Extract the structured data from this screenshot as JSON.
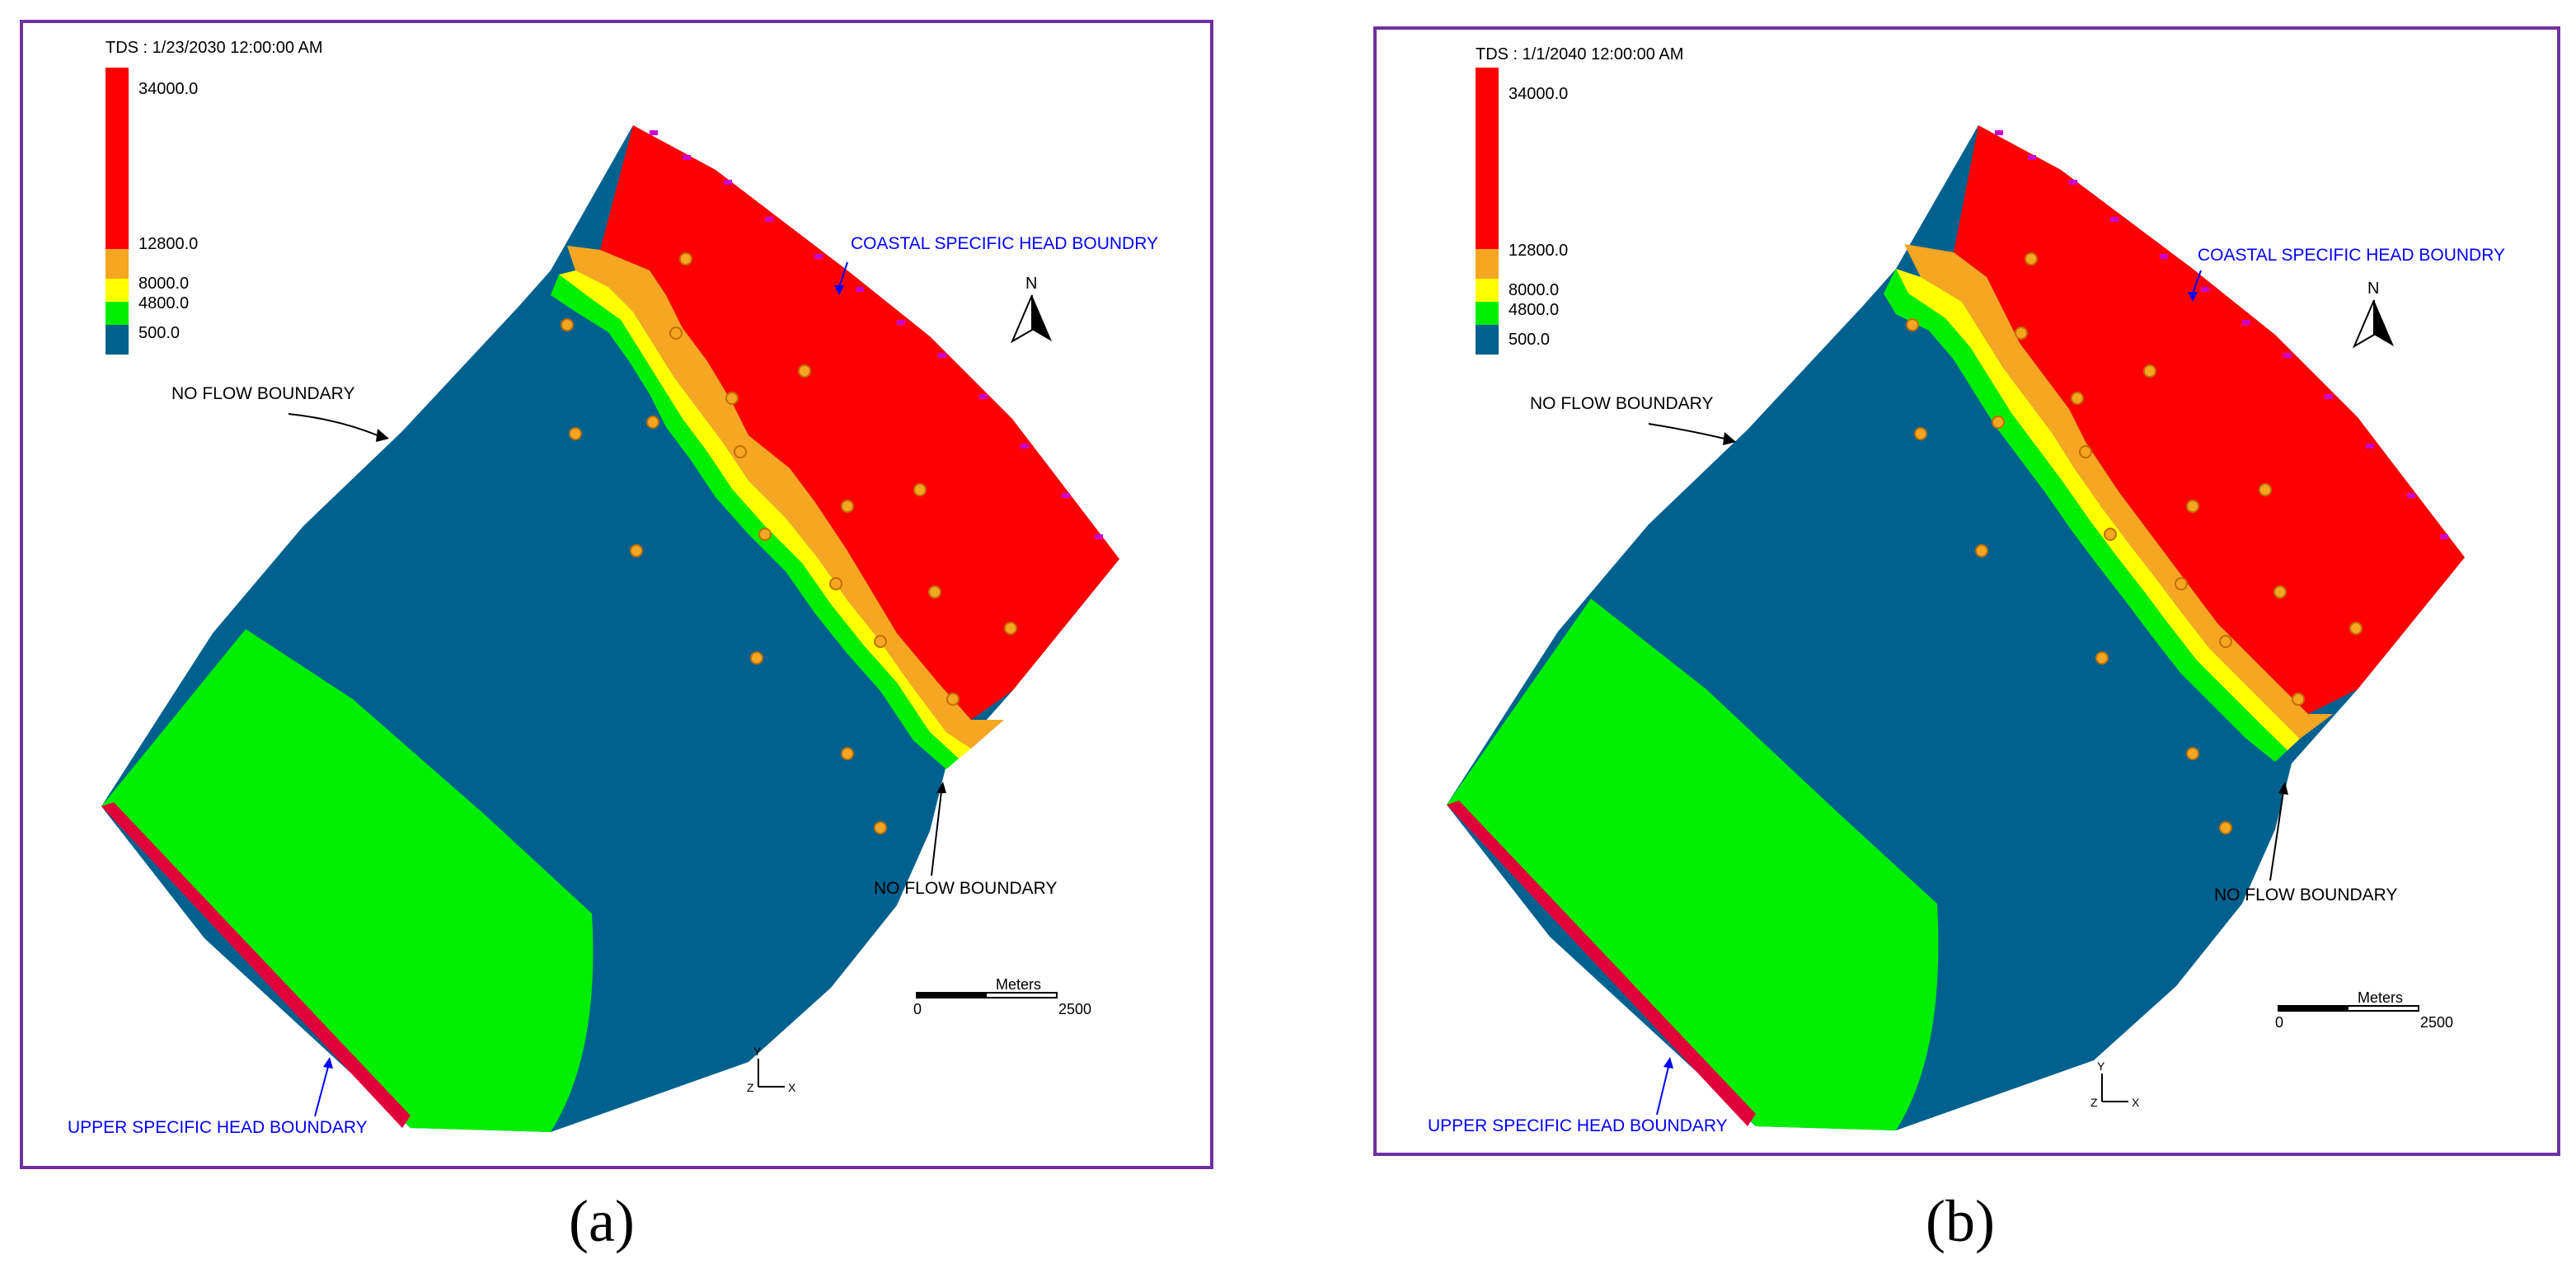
{
  "colors": {
    "frame": "#7030a0",
    "high_salinity": "#ff0000",
    "mid_high": "#f5a623",
    "mid": "#ffff00",
    "low_mid": "#00ee00",
    "fresh": "#00618f",
    "well": "#f5a623",
    "coastal_label": "#0000ff",
    "upper_label": "#0000ff",
    "boundary_cells": "#cc00cc"
  },
  "legend": {
    "values": [
      "34000.0",
      "12800.0",
      "8000.0",
      "4800.0",
      "500.0"
    ]
  },
  "labels": {
    "coastal": "COASTAL SPECIFIC HEAD BOUNDRY",
    "upper": "UPPER SPECIFIC HEAD BOUNDARY",
    "no_flow": "NO FLOW BOUNDARY",
    "north": "N",
    "scale_unit": "Meters",
    "scale_min": "0",
    "scale_max": "2500",
    "axis_y": "Y",
    "axis_z": "Z",
    "axis_x": "X"
  },
  "panels": [
    {
      "title": "TDS : 1/23/2030 12:00:00 AM",
      "caption": "(a)"
    },
    {
      "title": "TDS : 1/1/2040 12:00:00 AM",
      "caption": "(b)"
    }
  ]
}
